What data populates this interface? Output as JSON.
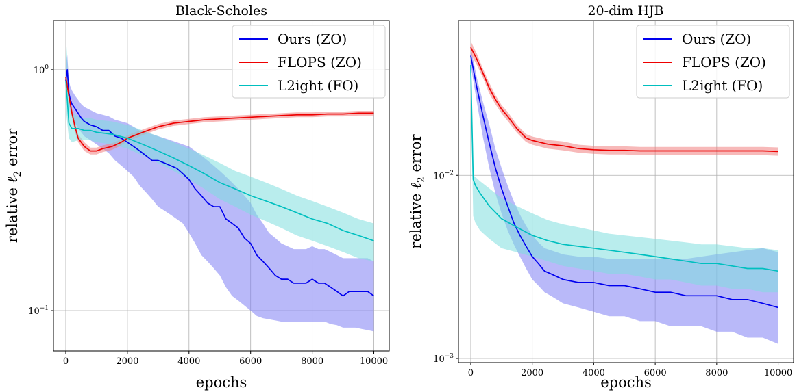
{
  "chart_data": [
    {
      "type": "line",
      "title": "Black-Scholes",
      "xlabel": "epochs",
      "ylabel_prefix": "relative",
      "ylabel_suffix": "error",
      "ylabel_symbol": "ℓ",
      "ylabel_subscript": "2",
      "xlim": [
        -400,
        10500
      ],
      "ylim": [
        0.068,
        1.6
      ],
      "yscale": "log",
      "grid": true,
      "legend_position": "top-right",
      "xticks": [
        0,
        2000,
        4000,
        6000,
        8000,
        10000
      ],
      "xtick_labels": [
        "0",
        "2000",
        "4000",
        "6000",
        "8000",
        "10000"
      ],
      "yticks": [
        {
          "value": 1.0,
          "base": "10",
          "exp": "0"
        },
        {
          "value": 0.1,
          "base": "10",
          "exp": "−1"
        }
      ],
      "series": [
        {
          "name": "Ours (ZO)",
          "color": "#0000ee",
          "band_color": "#8080f4",
          "x": [
            0,
            50,
            100,
            150,
            200,
            300,
            400,
            500,
            600,
            800,
            1000,
            1200,
            1400,
            1600,
            1800,
            2000,
            2200,
            2400,
            2600,
            2800,
            3000,
            3200,
            3400,
            3600,
            3800,
            4000,
            4200,
            4400,
            4600,
            4800,
            5000,
            5200,
            5400,
            5600,
            5800,
            6000,
            6200,
            6400,
            6600,
            6800,
            7000,
            7200,
            7400,
            7600,
            7800,
            8000,
            8200,
            8400,
            8600,
            8800,
            9000,
            9200,
            9400,
            9600,
            9800,
            10000
          ],
          "y": [
            0.9,
            1.0,
            0.8,
            0.75,
            0.72,
            0.69,
            0.66,
            0.63,
            0.61,
            0.59,
            0.58,
            0.56,
            0.56,
            0.53,
            0.52,
            0.5,
            0.48,
            0.46,
            0.44,
            0.42,
            0.42,
            0.41,
            0.4,
            0.39,
            0.37,
            0.35,
            0.32,
            0.3,
            0.28,
            0.27,
            0.27,
            0.24,
            0.23,
            0.22,
            0.2,
            0.19,
            0.17,
            0.16,
            0.15,
            0.14,
            0.135,
            0.135,
            0.13,
            0.13,
            0.13,
            0.135,
            0.13,
            0.13,
            0.125,
            0.12,
            0.115,
            0.12,
            0.12,
            0.12,
            0.12,
            0.115
          ],
          "lower": [
            0.8,
            0.9,
            0.72,
            0.67,
            0.64,
            0.6,
            0.57,
            0.55,
            0.53,
            0.51,
            0.49,
            0.47,
            0.45,
            0.42,
            0.4,
            0.38,
            0.36,
            0.33,
            0.31,
            0.29,
            0.27,
            0.26,
            0.25,
            0.24,
            0.23,
            0.21,
            0.19,
            0.17,
            0.16,
            0.15,
            0.14,
            0.125,
            0.115,
            0.11,
            0.105,
            0.1,
            0.095,
            0.093,
            0.092,
            0.091,
            0.09,
            0.09,
            0.09,
            0.09,
            0.09,
            0.09,
            0.09,
            0.09,
            0.088,
            0.087,
            0.085,
            0.085,
            0.085,
            0.084,
            0.083,
            0.082
          ],
          "upper": [
            1.05,
            1.15,
            0.9,
            0.85,
            0.82,
            0.78,
            0.75,
            0.72,
            0.7,
            0.68,
            0.66,
            0.65,
            0.64,
            0.62,
            0.61,
            0.6,
            0.58,
            0.56,
            0.55,
            0.54,
            0.53,
            0.52,
            0.51,
            0.5,
            0.49,
            0.48,
            0.46,
            0.44,
            0.42,
            0.4,
            0.38,
            0.36,
            0.34,
            0.32,
            0.3,
            0.28,
            0.25,
            0.23,
            0.21,
            0.2,
            0.19,
            0.185,
            0.18,
            0.18,
            0.18,
            0.185,
            0.18,
            0.18,
            0.175,
            0.17,
            0.165,
            0.165,
            0.165,
            0.165,
            0.165,
            0.16
          ]
        },
        {
          "name": "FLOPS (ZO)",
          "color": "#ee0000",
          "band_color": "#f08080",
          "x": [
            0,
            100,
            200,
            300,
            400,
            600,
            800,
            1000,
            1200,
            1500,
            1800,
            2000,
            2500,
            3000,
            3500,
            4000,
            4500,
            5000,
            5500,
            6000,
            6500,
            7000,
            7500,
            8000,
            8500,
            9000,
            9500,
            10000
          ],
          "y": [
            0.93,
            0.78,
            0.66,
            0.58,
            0.52,
            0.48,
            0.46,
            0.46,
            0.47,
            0.48,
            0.5,
            0.52,
            0.55,
            0.58,
            0.6,
            0.61,
            0.62,
            0.625,
            0.63,
            0.635,
            0.64,
            0.645,
            0.65,
            0.65,
            0.655,
            0.655,
            0.66,
            0.66
          ],
          "lower": [
            0.88,
            0.74,
            0.63,
            0.55,
            0.5,
            0.46,
            0.445,
            0.445,
            0.455,
            0.465,
            0.485,
            0.505,
            0.535,
            0.565,
            0.585,
            0.595,
            0.605,
            0.61,
            0.615,
            0.62,
            0.625,
            0.63,
            0.635,
            0.635,
            0.64,
            0.64,
            0.645,
            0.645
          ],
          "upper": [
            0.98,
            0.82,
            0.69,
            0.61,
            0.54,
            0.5,
            0.475,
            0.475,
            0.485,
            0.495,
            0.515,
            0.535,
            0.565,
            0.595,
            0.615,
            0.625,
            0.635,
            0.64,
            0.645,
            0.65,
            0.655,
            0.66,
            0.665,
            0.665,
            0.67,
            0.67,
            0.675,
            0.675
          ]
        },
        {
          "name": "L2ight (FO)",
          "color": "#00bfbf",
          "band_color": "#80dede",
          "x": [
            0,
            50,
            100,
            200,
            400,
            600,
            800,
            1000,
            1500,
            2000,
            2500,
            3000,
            3500,
            4000,
            4500,
            5000,
            5500,
            6000,
            6500,
            7000,
            7500,
            8000,
            8500,
            9000,
            9500,
            10000
          ],
          "y": [
            0.9,
            0.75,
            0.6,
            0.57,
            0.57,
            0.56,
            0.56,
            0.55,
            0.54,
            0.52,
            0.49,
            0.46,
            0.43,
            0.4,
            0.37,
            0.34,
            0.32,
            0.3,
            0.285,
            0.27,
            0.255,
            0.24,
            0.23,
            0.215,
            0.205,
            0.195
          ],
          "lower": [
            0.7,
            0.6,
            0.52,
            0.5,
            0.51,
            0.51,
            0.51,
            0.5,
            0.49,
            0.47,
            0.44,
            0.41,
            0.38,
            0.35,
            0.32,
            0.29,
            0.27,
            0.25,
            0.235,
            0.22,
            0.205,
            0.195,
            0.185,
            0.175,
            0.165,
            0.16
          ],
          "upper": [
            1.4,
            1.1,
            0.75,
            0.66,
            0.64,
            0.63,
            0.63,
            0.62,
            0.61,
            0.59,
            0.56,
            0.53,
            0.5,
            0.47,
            0.44,
            0.41,
            0.38,
            0.36,
            0.34,
            0.32,
            0.3,
            0.285,
            0.27,
            0.255,
            0.24,
            0.23
          ]
        }
      ]
    },
    {
      "type": "line",
      "title": "20-dim HJB",
      "xlabel": "epochs",
      "ylabel_prefix": "relative",
      "ylabel_suffix": "error",
      "ylabel_symbol": "ℓ",
      "ylabel_subscript": "2",
      "xlim": [
        -400,
        10500
      ],
      "ylim": [
        0.00095,
        0.07
      ],
      "yscale": "log",
      "grid": true,
      "legend_position": "top-right",
      "xticks": [
        0,
        2000,
        4000,
        6000,
        8000,
        10000
      ],
      "xtick_labels": [
        "0",
        "2000",
        "4000",
        "6000",
        "8000",
        "10000"
      ],
      "yticks": [
        {
          "value": 0.01,
          "base": "10",
          "exp": "−2"
        },
        {
          "value": 0.001,
          "base": "10",
          "exp": "−3"
        }
      ],
      "series": [
        {
          "name": "Ours (ZO)",
          "color": "#0000ee",
          "band_color": "#8080f4",
          "x": [
            0,
            200,
            400,
            600,
            800,
            1000,
            1200,
            1400,
            1600,
            1800,
            2000,
            2200,
            2400,
            2600,
            2800,
            3000,
            3500,
            4000,
            4500,
            5000,
            5500,
            6000,
            6500,
            7000,
            7500,
            8000,
            8500,
            9000,
            9500,
            10000
          ],
          "y": [
            0.045,
            0.03,
            0.021,
            0.015,
            0.011,
            0.0085,
            0.0068,
            0.0055,
            0.0047,
            0.0041,
            0.0036,
            0.0033,
            0.003,
            0.0029,
            0.0028,
            0.0027,
            0.0026,
            0.0026,
            0.0025,
            0.0025,
            0.0024,
            0.0023,
            0.0023,
            0.0022,
            0.0022,
            0.0022,
            0.0021,
            0.0021,
            0.002,
            0.0019
          ],
          "lower": [
            0.04,
            0.025,
            0.016,
            0.011,
            0.008,
            0.0062,
            0.005,
            0.0042,
            0.0036,
            0.0031,
            0.0027,
            0.0025,
            0.0023,
            0.0022,
            0.0021,
            0.002,
            0.0019,
            0.0018,
            0.0017,
            0.0017,
            0.0016,
            0.0016,
            0.0015,
            0.0015,
            0.0015,
            0.0014,
            0.0014,
            0.0013,
            0.0013,
            0.0012
          ],
          "upper": [
            0.05,
            0.034,
            0.025,
            0.019,
            0.014,
            0.011,
            0.0088,
            0.0072,
            0.0061,
            0.0053,
            0.0047,
            0.0043,
            0.004,
            0.0039,
            0.0038,
            0.0037,
            0.0036,
            0.0036,
            0.0035,
            0.0035,
            0.0035,
            0.0035,
            0.0035,
            0.0035,
            0.0036,
            0.0037,
            0.0038,
            0.0039,
            0.004,
            0.0038
          ]
        },
        {
          "name": "FLOPS (ZO)",
          "color": "#ee0000",
          "band_color": "#f08080",
          "x": [
            0,
            200,
            400,
            600,
            800,
            1000,
            1200,
            1500,
            1800,
            2000,
            2500,
            3000,
            3500,
            4000,
            4500,
            5000,
            5500,
            6000,
            6500,
            7000,
            7500,
            8000,
            8500,
            9000,
            9500,
            10000
          ],
          "y": [
            0.05,
            0.043,
            0.036,
            0.03,
            0.026,
            0.023,
            0.021,
            0.018,
            0.016,
            0.0155,
            0.0148,
            0.0145,
            0.014,
            0.0138,
            0.0137,
            0.0137,
            0.0136,
            0.0136,
            0.0136,
            0.0136,
            0.0136,
            0.0136,
            0.0136,
            0.0136,
            0.0136,
            0.0135
          ],
          "lower": [
            0.046,
            0.04,
            0.034,
            0.028,
            0.0245,
            0.0218,
            0.0198,
            0.0171,
            0.0152,
            0.0147,
            0.014,
            0.0137,
            0.0133,
            0.0131,
            0.013,
            0.013,
            0.0129,
            0.0129,
            0.0129,
            0.0129,
            0.0129,
            0.0129,
            0.0129,
            0.0129,
            0.0129,
            0.0128
          ],
          "upper": [
            0.054,
            0.046,
            0.038,
            0.032,
            0.0275,
            0.0242,
            0.0222,
            0.0189,
            0.0168,
            0.0163,
            0.0156,
            0.0153,
            0.0147,
            0.0145,
            0.0144,
            0.0144,
            0.0143,
            0.0143,
            0.0143,
            0.0143,
            0.0143,
            0.0143,
            0.0143,
            0.0143,
            0.0143,
            0.0142
          ]
        },
        {
          "name": "L2ight (FO)",
          "color": "#00bfbf",
          "band_color": "#80dede",
          "x": [
            0,
            80,
            150,
            300,
            600,
            1000,
            1500,
            2000,
            2500,
            3000,
            3500,
            4000,
            4500,
            5000,
            5500,
            6000,
            6500,
            7000,
            7500,
            8000,
            8500,
            9000,
            9500,
            10000
          ],
          "y": [
            0.04,
            0.0095,
            0.0088,
            0.008,
            0.0068,
            0.0058,
            0.0052,
            0.0047,
            0.0044,
            0.0042,
            0.0041,
            0.004,
            0.0039,
            0.0038,
            0.0037,
            0.0036,
            0.0035,
            0.0034,
            0.0033,
            0.0033,
            0.0032,
            0.0031,
            0.0031,
            0.003
          ],
          "lower": [
            0.03,
            0.006,
            0.0055,
            0.005,
            0.0045,
            0.004,
            0.0038,
            0.0036,
            0.0034,
            0.0032,
            0.0031,
            0.003,
            0.0029,
            0.0029,
            0.0028,
            0.0027,
            0.0027,
            0.0026,
            0.0025,
            0.0025,
            0.0024,
            0.0024,
            0.0023,
            0.0023
          ],
          "upper": [
            0.05,
            0.01,
            0.0098,
            0.0093,
            0.0085,
            0.0075,
            0.0068,
            0.0062,
            0.0057,
            0.0054,
            0.0052,
            0.005,
            0.0048,
            0.0047,
            0.0046,
            0.0045,
            0.0044,
            0.0043,
            0.0042,
            0.0042,
            0.0041,
            0.004,
            0.004,
            0.0039
          ]
        }
      ]
    }
  ]
}
